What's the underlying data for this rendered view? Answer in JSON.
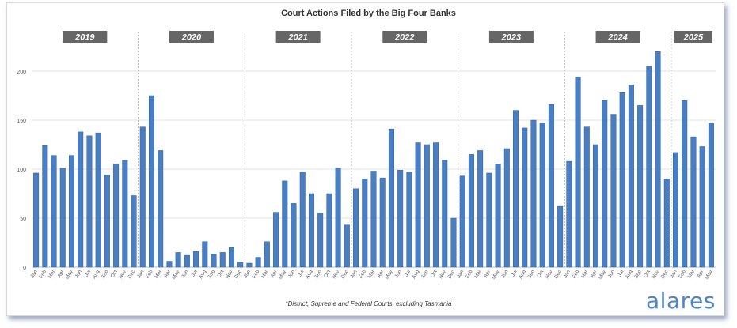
{
  "brand": "alares",
  "footnote": "*District, Supreme and Federal Courts, excluding Tasmania",
  "colors": {
    "bar": "#4a7ec3",
    "bar_edge": "#2f5f9e",
    "year_label_bg": "#666666",
    "brand": "#4f86c6"
  },
  "chart_data": {
    "type": "bar",
    "title": "Court Actions Filed by the Big Four Banks",
    "xlabel": "",
    "ylabel": "",
    "ylim": [
      0,
      225
    ],
    "yticks": [
      0,
      50,
      100,
      150,
      200
    ],
    "grid": true,
    "year_groups": [
      {
        "label": "2019",
        "start": 0,
        "count": 12
      },
      {
        "label": "2020",
        "start": 12,
        "count": 12
      },
      {
        "label": "2021",
        "start": 24,
        "count": 12
      },
      {
        "label": "2022",
        "start": 36,
        "count": 12
      },
      {
        "label": "2023",
        "start": 48,
        "count": 12
      },
      {
        "label": "2024",
        "start": 60,
        "count": 12
      },
      {
        "label": "2025",
        "start": 72,
        "count": 5
      }
    ],
    "categories": [
      "Jan",
      "Feb",
      "Mar",
      "Apr",
      "May",
      "Jun",
      "Jul",
      "Aug",
      "Sep",
      "Oct",
      "Nov",
      "Dec",
      "Jan",
      "Feb",
      "Mar",
      "Apr",
      "May",
      "Jun",
      "Jul",
      "Aug",
      "Sep",
      "Oct",
      "Nov",
      "Dec",
      "Jan",
      "Feb",
      "Mar",
      "Apr",
      "May",
      "Jun",
      "Jul",
      "Aug",
      "Sep",
      "Oct",
      "Nov",
      "Dec",
      "Jan",
      "Feb",
      "Mar",
      "Apr",
      "May",
      "Jun",
      "Jul",
      "Aug",
      "Sep",
      "Oct",
      "Nov",
      "Dec",
      "Jan",
      "Feb",
      "Mar",
      "Apr",
      "May",
      "Jun",
      "Jul",
      "Aug",
      "Sep",
      "Oct",
      "Nov",
      "Dec",
      "Jan",
      "Feb",
      "Mar",
      "Apr",
      "May",
      "Jun",
      "Jul",
      "Aug",
      "Sep",
      "Oct",
      "Nov",
      "Dec",
      "Jan",
      "Feb",
      "Mar",
      "Apr",
      "May"
    ],
    "values": [
      96,
      124,
      114,
      101,
      114,
      138,
      134,
      137,
      94,
      105,
      109,
      73,
      143,
      175,
      119,
      6,
      15,
      12,
      16,
      26,
      13,
      15,
      20,
      5,
      4,
      10,
      26,
      56,
      88,
      65,
      97,
      75,
      55,
      75,
      101,
      43,
      80,
      90,
      98,
      91,
      141,
      99,
      97,
      127,
      125,
      127,
      109,
      50,
      93,
      115,
      119,
      96,
      105,
      121,
      160,
      142,
      150,
      147,
      166,
      62,
      108,
      194,
      143,
      125,
      170,
      156,
      178,
      186,
      165,
      205,
      220,
      90,
      117,
      170,
      133,
      123,
      147
    ]
  }
}
